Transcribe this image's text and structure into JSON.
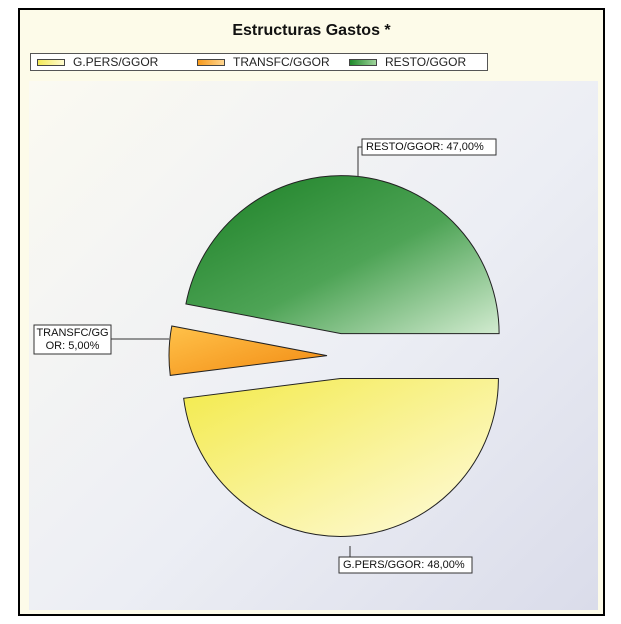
{
  "chart_data": {
    "type": "pie",
    "title": "Estructuras Gastos *",
    "legend": [
      "G.PERS/GGOR",
      "TRANSFC/GGOR",
      "RESTO/GGOR"
    ],
    "legend_position": "top",
    "slices": [
      {
        "name": "G.PERS/GGOR",
        "value": 48.0,
        "label_lines": [
          "G.PERS/GGOR: 48,00%"
        ],
        "color_light": "#f7f070",
        "color_dark": "#fffbd8"
      },
      {
        "name": "TRANSFC/GGOR",
        "value": 5.0,
        "label_lines": [
          "TRANSFC/GG",
          "OR: 5,00%"
        ],
        "color_light": "#ffc24a",
        "color_dark": "#f79a1d"
      },
      {
        "name": "RESTO/GGOR",
        "value": 47.0,
        "label_lines": [
          "RESTO/GGOR: 47,00%"
        ],
        "color_light": "#1f8a2a",
        "color_dark": "#cde8cb"
      }
    ]
  }
}
